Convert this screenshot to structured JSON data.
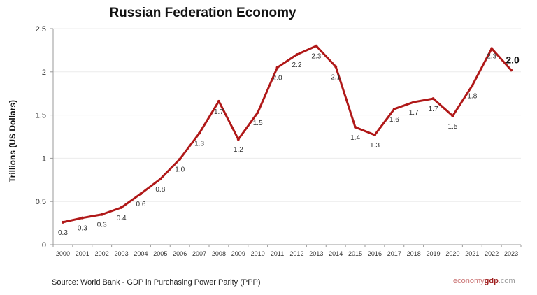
{
  "chart_data": {
    "type": "line",
    "title": "Russian Federation Economy",
    "xlabel": "",
    "ylabel": "Trillions (US Dollars)",
    "ylim": [
      0,
      2.5
    ],
    "yticks": [
      "0",
      "0.5",
      "1",
      "1.5",
      "2",
      "2.5"
    ],
    "grid": true,
    "categories": [
      "2000",
      "2001",
      "2002",
      "2003",
      "2004",
      "2005",
      "2006",
      "2007",
      "2008",
      "2009",
      "2010",
      "2011",
      "2012",
      "2013",
      "2014",
      "2015",
      "2016",
      "2017",
      "2018",
      "2019",
      "2020",
      "2021",
      "2022",
      "2023"
    ],
    "series": [
      {
        "name": "GDP (PPP)",
        "color": "#b01818",
        "values": [
          0.26,
          0.31,
          0.35,
          0.43,
          0.59,
          0.76,
          0.99,
          1.29,
          1.66,
          1.22,
          1.53,
          2.05,
          2.2,
          2.3,
          2.06,
          1.36,
          1.27,
          1.57,
          1.65,
          1.69,
          1.49,
          1.84,
          2.27,
          2.02
        ],
        "labels": [
          "0.3",
          "0.3",
          "0.3",
          "0.4",
          "0.6",
          "0.8",
          "1.0",
          "1.3",
          "1.7",
          "1.2",
          "1.5",
          "2.0",
          "2.2",
          "2.3",
          "2.1",
          "1.4",
          "1.3",
          "1.6",
          "1.7",
          "1.7",
          "1.5",
          "1.8",
          "2.3",
          "2.0"
        ]
      }
    ]
  },
  "footer": {
    "source": "Source:  World Bank -  GDP  in Purchasing Power Parity (PPP)",
    "logo_part1": "economy",
    "logo_part2": "gdp",
    "logo_part3": ".com"
  }
}
